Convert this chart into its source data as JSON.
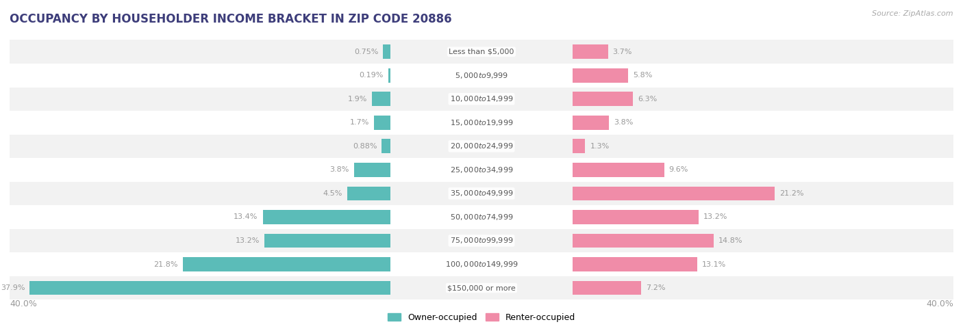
{
  "title": "OCCUPANCY BY HOUSEHOLDER INCOME BRACKET IN ZIP CODE 20886",
  "source": "Source: ZipAtlas.com",
  "categories": [
    "Less than $5,000",
    "$5,000 to $9,999",
    "$10,000 to $14,999",
    "$15,000 to $19,999",
    "$20,000 to $24,999",
    "$25,000 to $34,999",
    "$35,000 to $49,999",
    "$50,000 to $74,999",
    "$75,000 to $99,999",
    "$100,000 to $149,999",
    "$150,000 or more"
  ],
  "owner_values": [
    0.75,
    0.19,
    1.9,
    1.7,
    0.88,
    3.8,
    4.5,
    13.4,
    13.2,
    21.8,
    37.9
  ],
  "renter_values": [
    3.7,
    5.8,
    6.3,
    3.8,
    1.3,
    9.6,
    21.2,
    13.2,
    14.8,
    13.1,
    7.2
  ],
  "owner_color": "#5bbcb8",
  "renter_color": "#f08ca8",
  "bg_row_even": "#f2f2f2",
  "bg_row_odd": "#ffffff",
  "axis_limit": 40.0,
  "bar_height": 0.6,
  "title_color": "#3d3d7a",
  "label_color": "#999999",
  "value_label_color": "#999999",
  "category_fontsize": 8.0,
  "value_fontsize": 8.0,
  "title_fontsize": 12,
  "source_fontsize": 8,
  "legend_fontsize": 9,
  "legend_owner": "Owner-occupied",
  "legend_renter": "Renter-occupied"
}
